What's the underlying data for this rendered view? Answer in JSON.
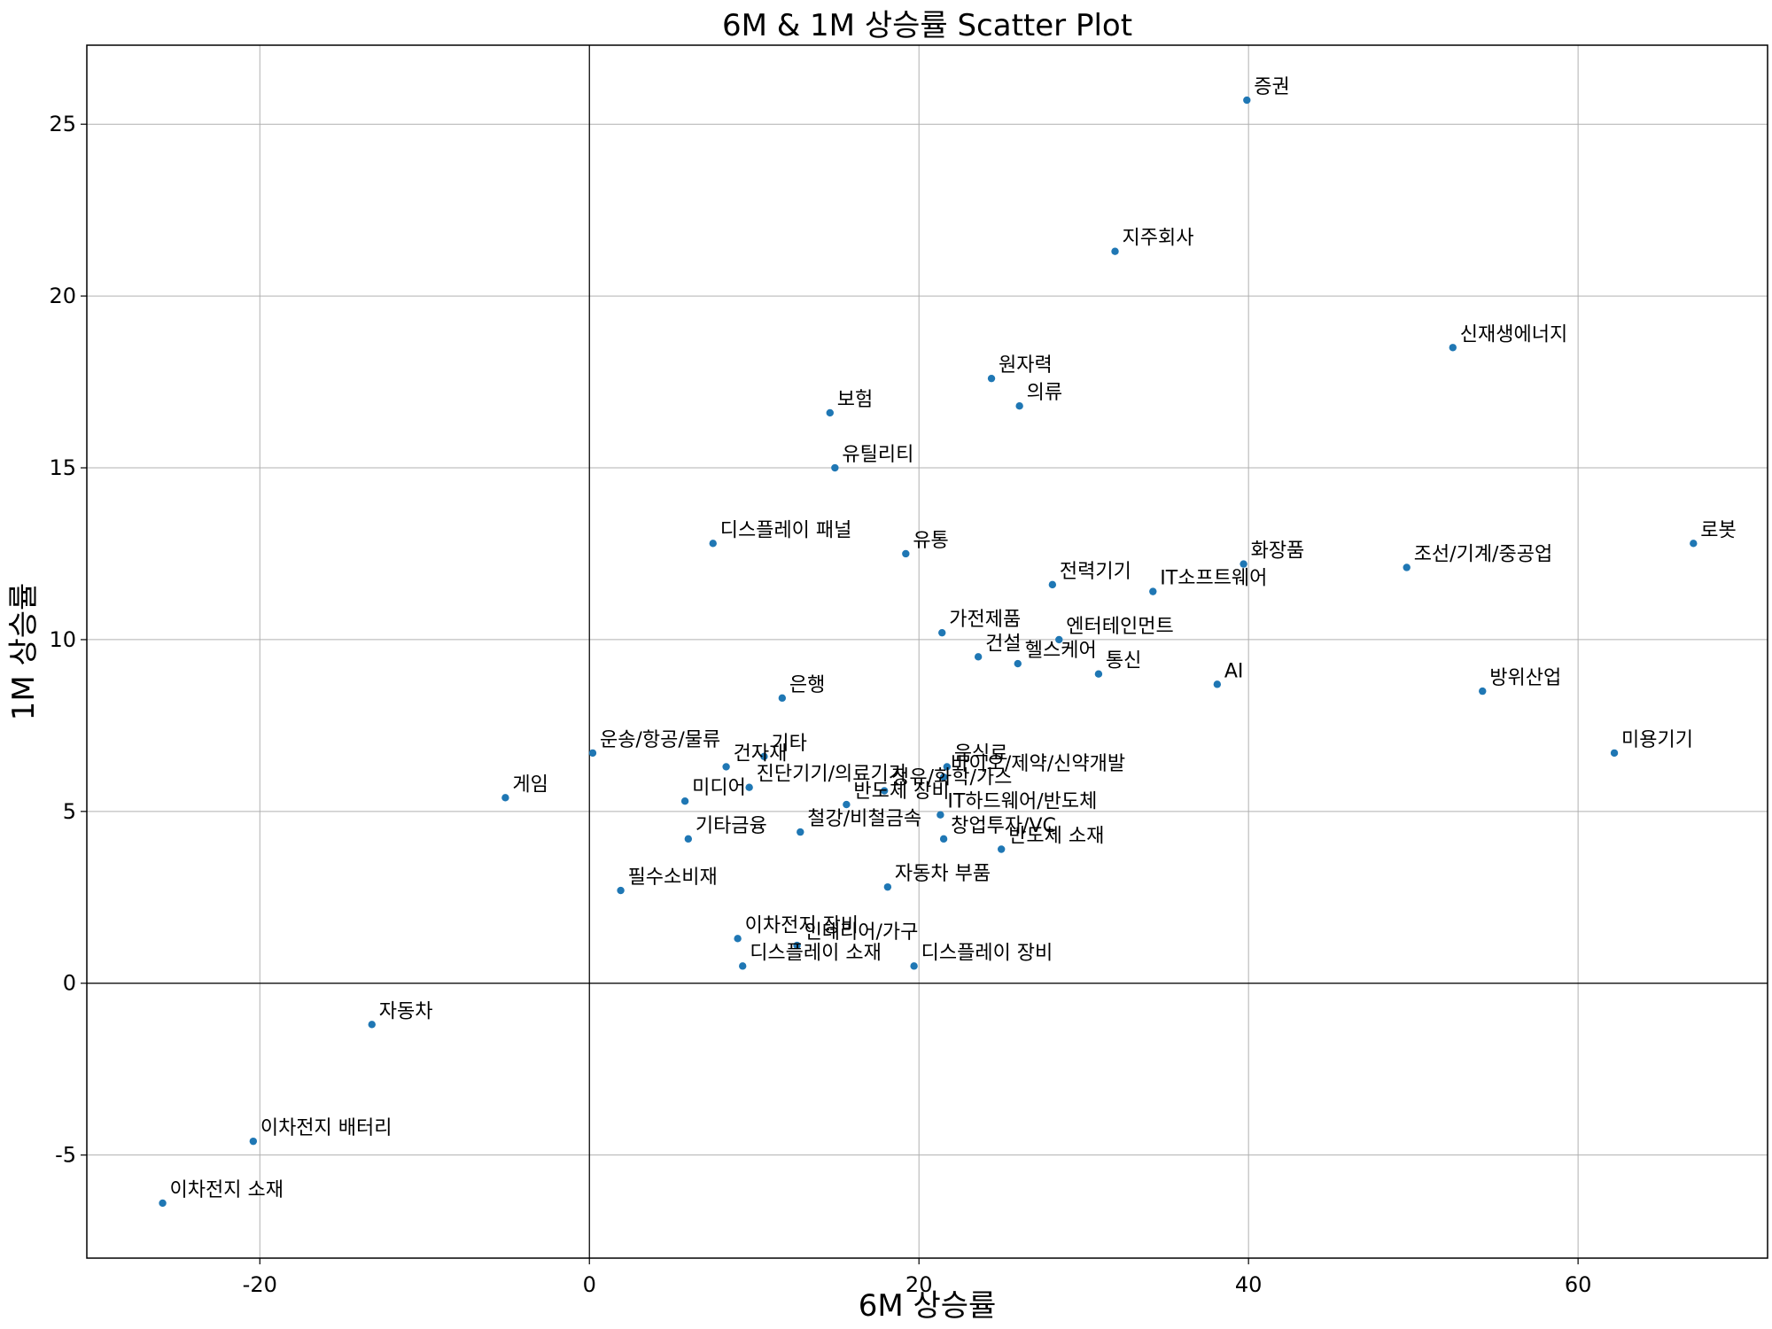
{
  "chart_data": {
    "type": "scatter",
    "title": "6M & 1M 상승률 Scatter Plot",
    "xlabel": "6M 상승률",
    "ylabel": "1M 상승률",
    "xlim": [
      -30.5,
      71.5
    ],
    "ylim": [
      -8,
      27.3
    ],
    "xticks": [
      -20,
      0,
      20,
      40,
      60
    ],
    "yticks": [
      -5,
      0,
      5,
      10,
      15,
      20,
      25
    ],
    "grid": true,
    "zero_lines": true,
    "marker_color": "#1f77b4",
    "points": [
      {
        "label": "증권",
        "x": 39.9,
        "y": 25.7
      },
      {
        "label": "지주회사",
        "x": 31.9,
        "y": 21.3
      },
      {
        "label": "신재생에너지",
        "x": 52.4,
        "y": 18.5
      },
      {
        "label": "원자력",
        "x": 24.4,
        "y": 17.6
      },
      {
        "label": "의류",
        "x": 26.1,
        "y": 16.8
      },
      {
        "label": "보험",
        "x": 14.6,
        "y": 16.6
      },
      {
        "label": "유틸리티",
        "x": 14.9,
        "y": 15.0
      },
      {
        "label": "디스플레이 패널",
        "x": 7.5,
        "y": 12.8
      },
      {
        "label": "유통",
        "x": 19.2,
        "y": 12.5
      },
      {
        "label": "로봇",
        "x": 67.0,
        "y": 12.8
      },
      {
        "label": "화장품",
        "x": 39.7,
        "y": 12.2
      },
      {
        "label": "조선/기계/중공업",
        "x": 49.6,
        "y": 12.1
      },
      {
        "label": "전력기기",
        "x": 28.1,
        "y": 11.6
      },
      {
        "label": "IT소프트웨어",
        "x": 34.2,
        "y": 11.4
      },
      {
        "label": "가전제품",
        "x": 21.4,
        "y": 10.2
      },
      {
        "label": "엔터테인먼트",
        "x": 28.5,
        "y": 10.0
      },
      {
        "label": "건설",
        "x": 23.6,
        "y": 9.5
      },
      {
        "label": "헬스케어",
        "x": 26.0,
        "y": 9.3
      },
      {
        "label": "통신",
        "x": 30.9,
        "y": 9.0
      },
      {
        "label": "AI",
        "x": 38.1,
        "y": 8.7
      },
      {
        "label": "방위산업",
        "x": 54.2,
        "y": 8.5
      },
      {
        "label": "은행",
        "x": 11.7,
        "y": 8.3
      },
      {
        "label": "미용기기",
        "x": 62.2,
        "y": 6.7
      },
      {
        "label": "운송/항공/물류",
        "x": 0.2,
        "y": 6.7
      },
      {
        "label": "기타",
        "x": 10.6,
        "y": 6.6
      },
      {
        "label": "건자재",
        "x": 8.3,
        "y": 6.3
      },
      {
        "label": "음식료",
        "x": 21.7,
        "y": 6.3
      },
      {
        "label": "바이오/제약/신약개발",
        "x": 21.5,
        "y": 6.0
      },
      {
        "label": "진단기기/의료기기",
        "x": 9.7,
        "y": 5.7
      },
      {
        "label": "정유/화학/가스",
        "x": 17.9,
        "y": 5.6
      },
      {
        "label": "게임",
        "x": -5.1,
        "y": 5.4
      },
      {
        "label": "미디어",
        "x": 5.8,
        "y": 5.3
      },
      {
        "label": "반도체 장비",
        "x": 15.6,
        "y": 5.2
      },
      {
        "label": "철강/비철금속",
        "x": 12.8,
        "y": 4.4
      },
      {
        "label": "IT하드웨어/반도체",
        "x": 21.3,
        "y": 4.9
      },
      {
        "label": "창업투자/VC",
        "x": 21.5,
        "y": 4.2
      },
      {
        "label": "기타금융",
        "x": 6.0,
        "y": 4.2
      },
      {
        "label": "반도체 소재",
        "x": 25.0,
        "y": 3.9
      },
      {
        "label": "자동차 부품",
        "x": 18.1,
        "y": 2.8
      },
      {
        "label": "필수소비재",
        "x": 1.9,
        "y": 2.7
      },
      {
        "label": "이차전지 장비",
        "x": 9.0,
        "y": 1.3
      },
      {
        "label": "인테리어/가구",
        "x": 12.6,
        "y": 1.1
      },
      {
        "label": "디스플레이 소재",
        "x": 9.3,
        "y": 0.5
      },
      {
        "label": "디스플레이 장비",
        "x": 19.7,
        "y": 0.5
      },
      {
        "label": "자동차",
        "x": -13.2,
        "y": -1.2
      },
      {
        "label": "이차전지 배터리",
        "x": -20.4,
        "y": -4.6
      },
      {
        "label": "이차전지 소재",
        "x": -25.9,
        "y": -6.4
      }
    ]
  }
}
